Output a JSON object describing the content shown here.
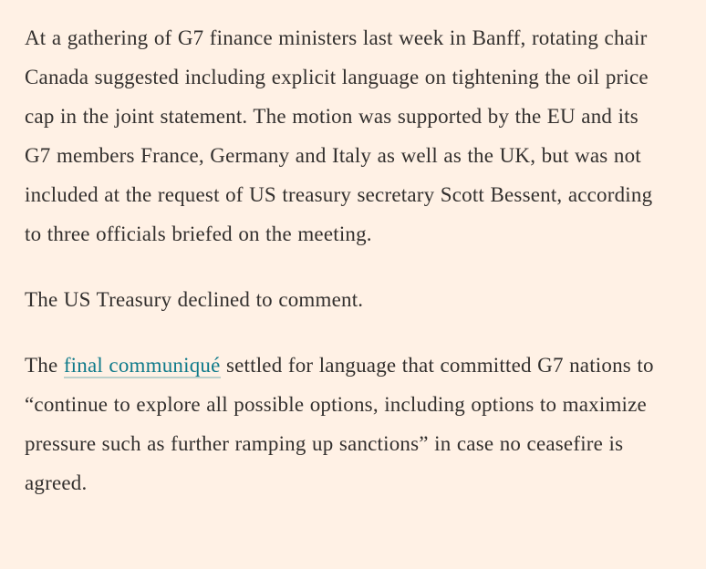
{
  "theme": {
    "background_color": "#FFF1E5",
    "body_text_color": "#33302E",
    "link_color": "#0F7A8A",
    "link_underline_color": "rgba(15,122,138,0.28)"
  },
  "article": {
    "paragraph_1": "At a gathering of G7 finance ministers last week in Banff, rotating chair Canada suggested including explicit language on tightening the oil price cap in the joint statement. The motion was supported by the EU and its G7 members France, Germany and Italy as well as the UK, but was not included at the request of US treasury secretary Scott Bessent, according to three officials briefed on the meeting.",
    "paragraph_2": "The US Treasury declined to comment.",
    "paragraph_3_before_link": "The ",
    "paragraph_3_link_text": "final communiqué",
    "paragraph_3_after_link": " settled for language that committed G7 nations to “continue to explore all possible options, including options to maximize pressure such as further ramping up sanctions” in case no ceasefire is agreed."
  }
}
